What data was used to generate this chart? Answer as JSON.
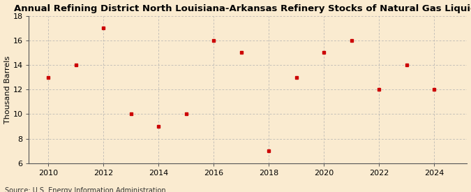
{
  "title": "Annual Refining District North Louisiana-Arkansas Refinery Stocks of Natural Gas Liquids",
  "ylabel": "Thousand Barrels",
  "source": "Source: U.S. Energy Information Administration",
  "years": [
    2010,
    2011,
    2012,
    2013,
    2014,
    2015,
    2016,
    2017,
    2018,
    2019,
    2020,
    2021,
    2022,
    2023,
    2024
  ],
  "values": [
    13,
    14,
    17,
    10,
    9,
    10,
    16,
    15,
    7,
    13,
    15,
    16,
    12,
    14,
    12
  ],
  "marker_color": "#cc0000",
  "marker": "s",
  "marker_size": 3.5,
  "ylim": [
    6,
    18
  ],
  "yticks": [
    6,
    8,
    10,
    12,
    14,
    16,
    18
  ],
  "xlim": [
    2009.3,
    2025.2
  ],
  "xticks": [
    2010,
    2012,
    2014,
    2016,
    2018,
    2020,
    2022,
    2024
  ],
  "background_color": "#faebd0",
  "plot_bg_color": "#faebd0",
  "grid_color": "#b0b0b0",
  "spine_color": "#555555",
  "title_fontsize": 9.5,
  "label_fontsize": 8,
  "tick_fontsize": 8,
  "source_fontsize": 7
}
